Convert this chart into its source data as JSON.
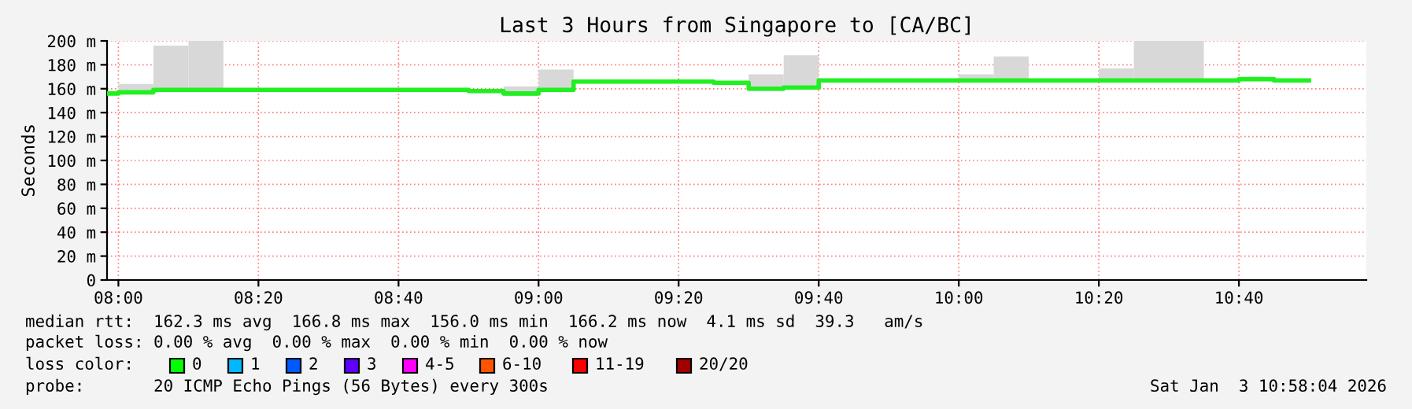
{
  "chart_data": {
    "type": "step",
    "title": "Last 3 Hours from Singapore to [CA/BC]",
    "ylabel": "Seconds",
    "xlim": [
      7.973,
      10.97
    ],
    "xticks": [
      {
        "value": 8.0,
        "label": "08:00"
      },
      {
        "value": 8.3333,
        "label": "08:20"
      },
      {
        "value": 8.6667,
        "label": "08:40"
      },
      {
        "value": 9.0,
        "label": "09:00"
      },
      {
        "value": 9.3333,
        "label": "09:20"
      },
      {
        "value": 9.6667,
        "label": "09:40"
      },
      {
        "value": 10.0,
        "label": "10:00"
      },
      {
        "value": 10.3333,
        "label": "10:20"
      },
      {
        "value": 10.6667,
        "label": "10:40"
      }
    ],
    "ylim": [
      0,
      200
    ],
    "yticks": [
      {
        "value": 0,
        "label": "0"
      },
      {
        "value": 20,
        "label": "20 m"
      },
      {
        "value": 40,
        "label": "40 m"
      },
      {
        "value": 60,
        "label": "60 m"
      },
      {
        "value": 80,
        "label": "80 m"
      },
      {
        "value": 100,
        "label": "100 m"
      },
      {
        "value": 120,
        "label": "120 m"
      },
      {
        "value": 140,
        "label": "140 m"
      },
      {
        "value": 160,
        "label": "160 m"
      },
      {
        "value": 180,
        "label": "180 m"
      },
      {
        "value": 200,
        "label": "200 m"
      }
    ],
    "grid": true,
    "series": [
      {
        "color": "#20f020",
        "x": [
          7.975,
          8.0,
          8.0833,
          8.1667,
          8.25,
          8.3333,
          8.4167,
          8.5,
          8.5833,
          8.6667,
          8.75,
          8.8333,
          8.9167,
          9.0,
          9.0833,
          9.1667,
          9.25,
          9.3333,
          9.4167,
          9.5,
          9.5833,
          9.6667,
          9.75,
          9.8333,
          9.9167,
          10.0,
          10.0833,
          10.1667,
          10.25,
          10.3333,
          10.4167,
          10.5,
          10.5833,
          10.6667,
          10.75,
          10.8333
        ],
        "values": [
          156,
          157,
          159,
          159,
          159,
          159,
          159,
          159,
          159,
          159,
          159,
          158,
          156,
          159,
          166,
          166,
          166,
          166,
          165,
          160,
          161,
          167,
          167,
          167,
          167,
          167,
          167,
          167,
          167,
          167,
          167,
          167,
          167,
          168,
          167,
          167
        ],
        "lower": [
          null,
          157,
          159,
          159,
          null,
          null,
          null,
          null,
          null,
          null,
          null,
          null,
          154,
          159,
          null,
          null,
          null,
          null,
          null,
          158,
          160,
          null,
          null,
          null,
          null,
          167,
          167,
          null,
          null,
          167,
          167,
          167,
          167,
          null,
          null,
          null
        ],
        "upper": [
          null,
          164,
          196,
          200,
          null,
          null,
          null,
          null,
          null,
          null,
          null,
          null,
          162,
          176,
          null,
          null,
          null,
          null,
          null,
          172,
          188,
          null,
          null,
          null,
          null,
          172,
          187,
          null,
          null,
          177,
          200,
          200,
          167,
          null,
          null,
          null
        ]
      }
    ],
    "annotations": [
      "median rtt:  162.3 ms avg  166.8 ms max  156.0 ms min  166.2 ms now  4.1 ms sd  39.3   am/s",
      "packet loss: 0.00 % avg  0.00 % max  0.00 % min  0.00 % now",
      "loss color:",
      "0",
      "1",
      "2",
      "3",
      "4-5",
      "6-10",
      "11-19",
      "20/20",
      "probe:       20 ICMP Echo Pings (56 Bytes) every 300s",
      "Sat Jan  3 10:58:04 2026"
    ]
  }
}
